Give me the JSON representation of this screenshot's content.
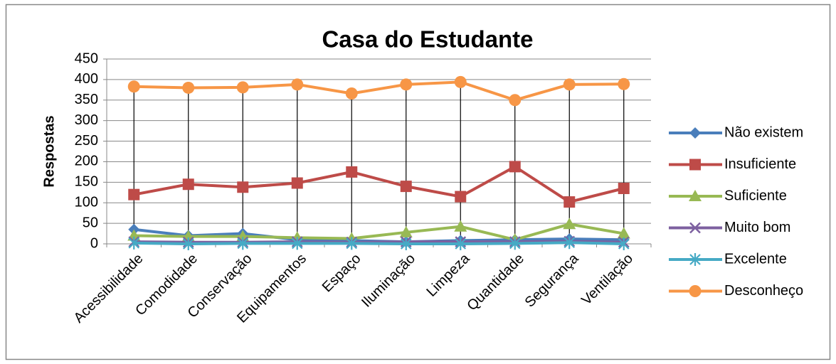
{
  "chart_data": {
    "type": "line",
    "title": "Casa do Estudante",
    "y_label": "Respostas",
    "categories": [
      "Acessibilidade",
      "Comodidade",
      "Conservação",
      "Equipamentos",
      "Espaço",
      "Iluminação",
      "Limpeza",
      "Quantidade",
      "Segurança",
      "Ventilação"
    ],
    "series": [
      {
        "name": "Não existem",
        "color": "#4a7ebb",
        "marker": "diamond",
        "values": [
          35,
          20,
          25,
          10,
          8,
          5,
          8,
          10,
          12,
          10
        ]
      },
      {
        "name": "Insuficiente",
        "color": "#be4b48",
        "marker": "square",
        "values": [
          120,
          145,
          138,
          148,
          175,
          140,
          115,
          188,
          102,
          135
        ]
      },
      {
        "name": "Suficiente",
        "color": "#98b954",
        "marker": "triangle",
        "values": [
          20,
          18,
          18,
          15,
          13,
          28,
          42,
          10,
          48,
          25
        ]
      },
      {
        "name": "Muito bom",
        "color": "#7d60a0",
        "marker": "x",
        "values": [
          5,
          4,
          4,
          5,
          4,
          5,
          5,
          5,
          6,
          4
        ]
      },
      {
        "name": "Excelente",
        "color": "#46aac5",
        "marker": "star",
        "values": [
          2,
          0,
          1,
          1,
          1,
          0,
          0,
          1,
          3,
          0
        ]
      },
      {
        "name": "Desconheço",
        "color": "#f79646",
        "marker": "circle",
        "values": [
          383,
          380,
          381,
          388,
          366,
          388,
          394,
          350,
          388,
          389
        ]
      }
    ],
    "ylim": [
      0,
      450
    ],
    "yticks": [
      0,
      50,
      100,
      150,
      200,
      250,
      300,
      350,
      400,
      450
    ],
    "grid": true,
    "drop_lines": true,
    "legend": "right"
  }
}
